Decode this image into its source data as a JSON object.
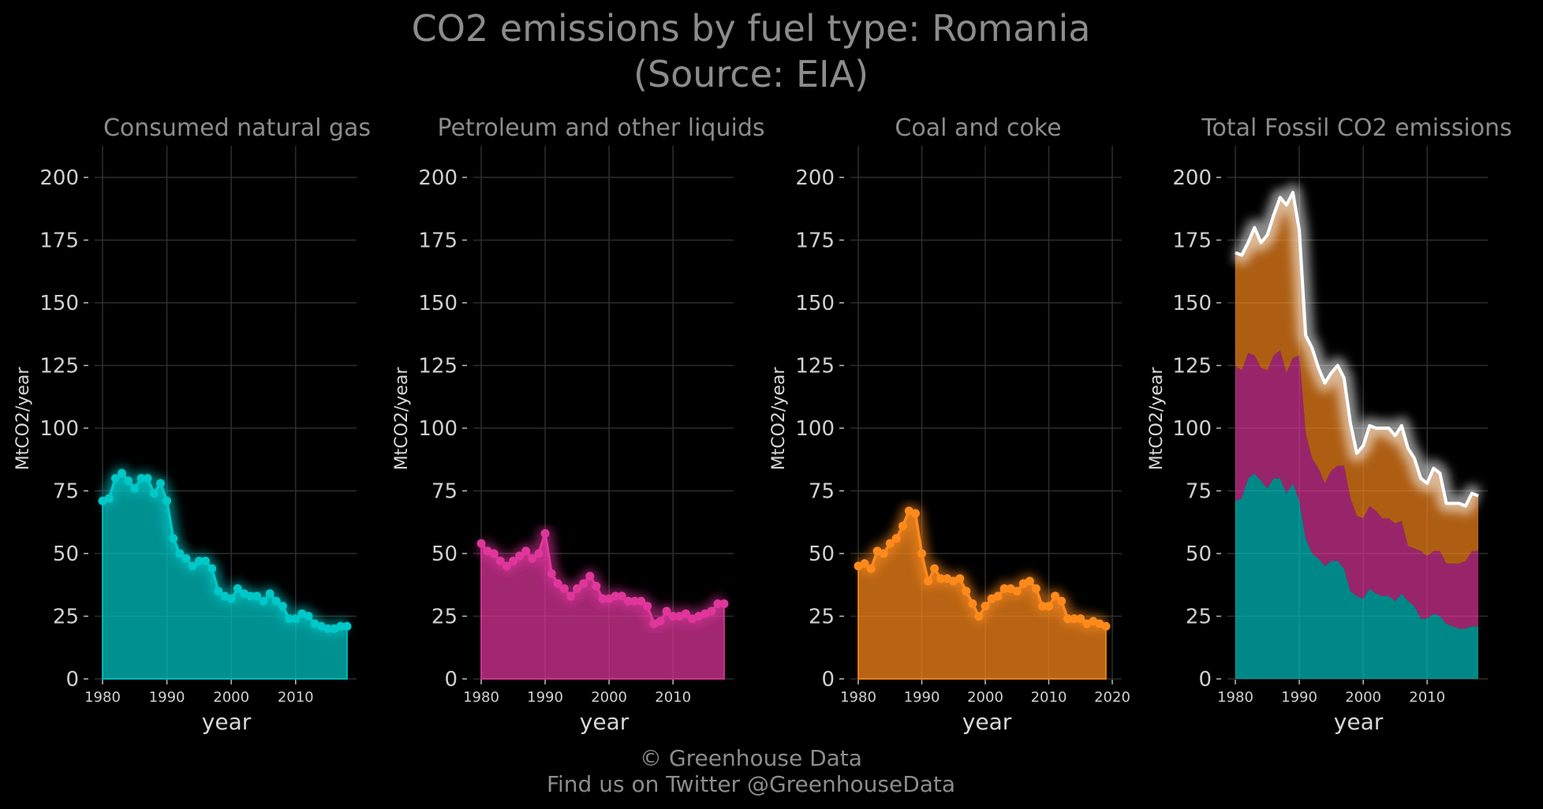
{
  "title_line1": "CO2 emissions by fuel type: Romania",
  "title_line2": "(Source: EIA)",
  "credit_line1": "© Greenhouse Data",
  "credit_line2": "Find us on Twitter @GreenhouseData",
  "colors": {
    "natural_gas": "#00c8c8",
    "petroleum": "#e0369c",
    "coal": "#ff8a1c",
    "total": "#ffffff",
    "background": "#000000"
  },
  "chart_data": [
    {
      "type": "area",
      "title": "Consumed natural gas",
      "xlabel": "year",
      "ylabel": "MtCO2/year",
      "xlim": [
        1980,
        2018
      ],
      "ylim": [
        0,
        210
      ],
      "yticks": [
        0,
        25,
        50,
        75,
        100,
        125,
        150,
        175,
        200
      ],
      "xticks": [
        1980,
        1990,
        2000,
        2010
      ],
      "grid": true,
      "x": [
        1980,
        1981,
        1982,
        1983,
        1984,
        1985,
        1986,
        1987,
        1988,
        1989,
        1990,
        1991,
        1992,
        1993,
        1994,
        1995,
        1996,
        1997,
        1998,
        1999,
        2000,
        2001,
        2002,
        2003,
        2004,
        2005,
        2006,
        2007,
        2008,
        2009,
        2010,
        2011,
        2012,
        2013,
        2014,
        2015,
        2016,
        2017,
        2018
      ],
      "y": [
        71,
        72,
        80,
        82,
        79,
        76,
        80,
        80,
        74,
        78,
        71,
        56,
        50,
        48,
        45,
        47,
        47,
        44,
        35,
        33,
        32,
        36,
        34,
        33,
        33,
        31,
        34,
        31,
        29,
        24,
        24,
        26,
        25,
        22,
        21,
        20,
        20,
        21,
        21
      ]
    },
    {
      "type": "area",
      "title": "Petroleum and other liquids",
      "xlabel": "year",
      "ylabel": "MtCO2/year",
      "xlim": [
        1980,
        2018
      ],
      "ylim": [
        0,
        210
      ],
      "yticks": [
        0,
        25,
        50,
        75,
        100,
        125,
        150,
        175,
        200
      ],
      "xticks": [
        1980,
        1990,
        2000,
        2010
      ],
      "grid": true,
      "x": [
        1980,
        1981,
        1982,
        1983,
        1984,
        1985,
        1986,
        1987,
        1988,
        1989,
        1990,
        1991,
        1992,
        1993,
        1994,
        1995,
        1996,
        1997,
        1998,
        1999,
        2000,
        2001,
        2002,
        2003,
        2004,
        2005,
        2006,
        2007,
        2008,
        2009,
        2010,
        2011,
        2012,
        2013,
        2014,
        2015,
        2016,
        2017,
        2018
      ],
      "y": [
        54,
        51,
        50,
        47,
        45,
        47,
        49,
        51,
        48,
        50,
        58,
        42,
        38,
        36,
        33,
        36,
        38,
        41,
        37,
        32,
        32,
        33,
        33,
        31,
        31,
        31,
        29,
        22,
        23,
        27,
        25,
        25,
        26,
        24,
        25,
        26,
        27,
        30,
        30
      ]
    },
    {
      "type": "area",
      "title": "Coal and coke",
      "xlabel": "year",
      "ylabel": "MtCO2/year",
      "xlim": [
        1980,
        2020
      ],
      "ylim": [
        0,
        210
      ],
      "yticks": [
        0,
        25,
        50,
        75,
        100,
        125,
        150,
        175,
        200
      ],
      "xticks": [
        1980,
        1990,
        2000,
        2010,
        2020
      ],
      "grid": true,
      "x": [
        1980,
        1981,
        1982,
        1983,
        1984,
        1985,
        1986,
        1987,
        1988,
        1989,
        1990,
        1991,
        1992,
        1993,
        1994,
        1995,
        1996,
        1997,
        1998,
        1999,
        2000,
        2001,
        2002,
        2003,
        2004,
        2005,
        2006,
        2007,
        2008,
        2009,
        2010,
        2011,
        2012,
        2013,
        2014,
        2015,
        2016,
        2017,
        2018,
        2019
      ],
      "y": [
        45,
        46,
        44,
        51,
        50,
        54,
        56,
        61,
        67,
        66,
        50,
        39,
        44,
        40,
        40,
        39,
        40,
        35,
        30,
        25,
        29,
        32,
        33,
        36,
        36,
        35,
        38,
        39,
        36,
        29,
        29,
        33,
        31,
        24,
        24,
        24,
        22,
        23,
        22,
        21
      ]
    },
    {
      "type": "area",
      "title": "Total Fossil CO2 emissions",
      "xlabel": "year",
      "ylabel": "MtCO2/year",
      "xlim": [
        1980,
        2018
      ],
      "ylim": [
        0,
        210
      ],
      "yticks": [
        0,
        25,
        50,
        75,
        100,
        125,
        150,
        175,
        200
      ],
      "xticks": [
        1980,
        1990,
        2000,
        2010
      ],
      "grid": true,
      "stacked": true,
      "x": [
        1980,
        1981,
        1982,
        1983,
        1984,
        1985,
        1986,
        1987,
        1988,
        1989,
        1990,
        1991,
        1992,
        1993,
        1994,
        1995,
        1996,
        1997,
        1998,
        1999,
        2000,
        2001,
        2002,
        2003,
        2004,
        2005,
        2006,
        2007,
        2008,
        2009,
        2010,
        2011,
        2012,
        2013,
        2014,
        2015,
        2016,
        2017,
        2018
      ],
      "series": [
        {
          "key": "natural_gas",
          "values": [
            71,
            72,
            80,
            82,
            79,
            76,
            80,
            80,
            74,
            78,
            71,
            56,
            50,
            48,
            45,
            47,
            47,
            44,
            35,
            33,
            32,
            36,
            34,
            33,
            33,
            31,
            34,
            31,
            29,
            24,
            24,
            26,
            25,
            22,
            21,
            20,
            20,
            21,
            21
          ]
        },
        {
          "key": "petroleum",
          "values": [
            54,
            51,
            50,
            47,
            45,
            47,
            49,
            51,
            48,
            50,
            58,
            42,
            38,
            36,
            33,
            36,
            38,
            41,
            37,
            32,
            32,
            33,
            33,
            31,
            31,
            31,
            29,
            22,
            23,
            27,
            25,
            25,
            26,
            24,
            25,
            26,
            27,
            30,
            30
          ]
        },
        {
          "key": "coal",
          "values": [
            45,
            46,
            44,
            51,
            50,
            54,
            56,
            61,
            67,
            66,
            50,
            39,
            44,
            40,
            40,
            39,
            40,
            35,
            30,
            25,
            29,
            32,
            33,
            36,
            36,
            35,
            38,
            39,
            36,
            29,
            29,
            33,
            31,
            24,
            24,
            24,
            22,
            23,
            22
          ]
        }
      ],
      "total": [
        170,
        169,
        174,
        180,
        174,
        177,
        185,
        192,
        189,
        194,
        179,
        137,
        132,
        124,
        118,
        122,
        125,
        120,
        102,
        90,
        93,
        101,
        100,
        100,
        100,
        97,
        101,
        92,
        88,
        80,
        78,
        84,
        82,
        70,
        70,
        70,
        69,
        74,
        73
      ]
    }
  ]
}
